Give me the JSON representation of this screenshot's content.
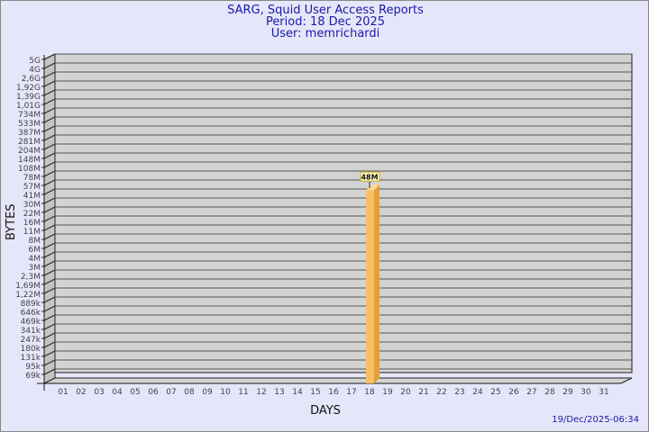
{
  "chart_data": {
    "type": "bar",
    "title": "SARG, Squid User Access Reports",
    "subtitle": [
      "Period: 18 Dec 2025",
      "User: memrichardi"
    ],
    "xlabel": "DAYS",
    "ylabel": "BYTES",
    "yscale": "log",
    "yticks": [
      "5G",
      "4G",
      "2,6G",
      "1,92G",
      "1,39G",
      "1,01G",
      "734M",
      "533M",
      "387M",
      "281M",
      "204M",
      "148M",
      "108M",
      "78M",
      "57M",
      "41M",
      "30M",
      "22M",
      "16M",
      "11M",
      "8M",
      "6M",
      "4M",
      "3M",
      "2,3M",
      "1,69M",
      "1,22M",
      "889k",
      "646k",
      "469k",
      "341k",
      "247k",
      "180k",
      "131k",
      "95k",
      "69k"
    ],
    "categories": [
      "01",
      "02",
      "03",
      "04",
      "05",
      "06",
      "07",
      "08",
      "09",
      "10",
      "11",
      "12",
      "13",
      "14",
      "15",
      "16",
      "17",
      "18",
      "19",
      "20",
      "21",
      "22",
      "23",
      "24",
      "25",
      "26",
      "27",
      "28",
      "29",
      "30",
      "31"
    ],
    "values": [
      null,
      null,
      null,
      null,
      null,
      null,
      null,
      null,
      null,
      null,
      null,
      null,
      null,
      null,
      null,
      null,
      null,
      48000000,
      null,
      null,
      null,
      null,
      null,
      null,
      null,
      null,
      null,
      null,
      null,
      null,
      null
    ],
    "data_labels": {
      "18": "48M"
    },
    "grid": true,
    "colors": {
      "bar": "#f8c060",
      "bar_side": "#e0a040",
      "wall": "#d3d3d3",
      "background": "#e6e6fa",
      "title": "#1a1aa6"
    }
  },
  "footer": {
    "timestamp": "19/Dec/2025-06:34"
  }
}
